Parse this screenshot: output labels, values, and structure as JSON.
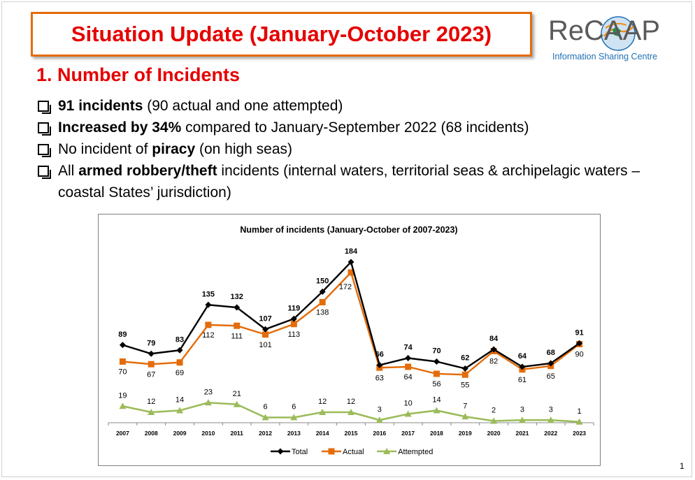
{
  "slide": {
    "title": "Situation Update (January-October 2023)",
    "logo_word": "ReCAAP",
    "logo_tagline": "Information Sharing Centre",
    "section_heading": "1. Number of Incidents",
    "page_number": "1",
    "bullets": [
      {
        "bold": "91 incidents",
        "rest": " (90 actual and one attempted)"
      },
      {
        "bold": "Increased by 34%",
        "rest": " compared to January-September 2022 (68 incidents)"
      },
      {
        "pre": "No incident of ",
        "bold": "piracy",
        "rest": " (on high seas)"
      },
      {
        "pre": "All ",
        "bold": "armed robbery/theft",
        "rest": " incidents (internal waters, territorial seas & archipelagic waters – coastal States’ jurisdiction)"
      }
    ]
  },
  "colors": {
    "title_red": "#e60000",
    "title_border": "#e46c0a",
    "total": "#000000",
    "actual": "#e46c0a",
    "attempted": "#9bbb59"
  },
  "chart_data": {
    "type": "line",
    "title": "Number of incidents (January-October of 2007-2023)",
    "categories": [
      "2007",
      "2008",
      "2009",
      "2010",
      "2011",
      "2012",
      "2013",
      "2014",
      "2015",
      "2016",
      "2017",
      "2018",
      "2019",
      "2020",
      "2021",
      "2022",
      "2023"
    ],
    "series": [
      {
        "name": "Total",
        "marker": "diamond",
        "values": [
          89,
          79,
          83,
          135,
          132,
          107,
          119,
          150,
          184,
          66,
          74,
          70,
          62,
          84,
          64,
          68,
          91
        ]
      },
      {
        "name": "Actual",
        "marker": "square",
        "values": [
          70,
          67,
          69,
          112,
          111,
          101,
          113,
          138,
          172,
          63,
          64,
          56,
          55,
          82,
          61,
          65,
          90
        ]
      },
      {
        "name": "Attempted",
        "marker": "triangle",
        "values": [
          19,
          12,
          14,
          23,
          21,
          6,
          6,
          12,
          12,
          3,
          10,
          14,
          7,
          2,
          3,
          3,
          1
        ]
      }
    ],
    "ylim": [
      0,
      200
    ],
    "grid": false,
    "legend": "bottom-center"
  }
}
